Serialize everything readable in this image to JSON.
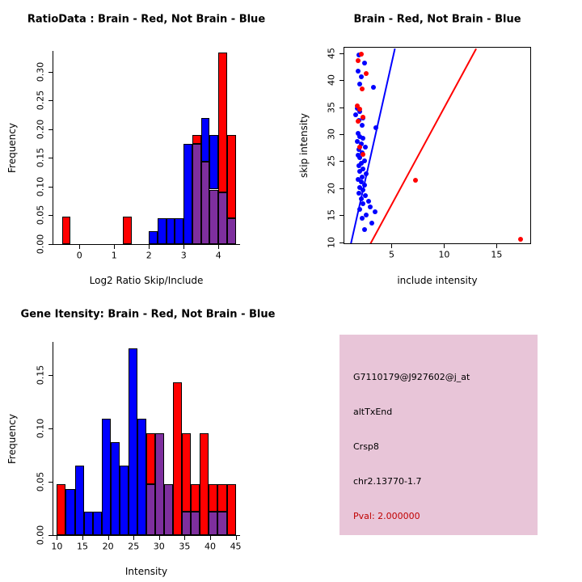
{
  "colors": {
    "red": "#FF0000",
    "blue": "#0000FF",
    "overlap": "#7E2F9E",
    "axis": "#000000"
  },
  "panels": {
    "ratio_hist": {
      "title": "RatioData : Brain - Red, Not Brain - Blue",
      "xlabel": "Log2 Ratio Skip/Include",
      "ylabel": "Frequency"
    },
    "scatter": {
      "title": "Brain - Red, Not Brain - Blue",
      "xlabel": "include intensity",
      "ylabel": "skip intensity"
    },
    "gene_hist": {
      "title": "Gene Itensity: Brain - Red, Not Brain - Blue",
      "xlabel": "Intensity",
      "ylabel": "Frequency"
    },
    "info_box": {
      "bg": "#E8C5D8",
      "lines": [
        {
          "text": "G7110179@J927602@j_at",
          "color": "#000000"
        },
        {
          "text": "altTxEnd",
          "color": "#000000"
        },
        {
          "text": "Crsp8",
          "color": "#000000"
        },
        {
          "text": "chr2.13770-1.7",
          "color": "#000000"
        },
        {
          "text": "Pval: 2.000000",
          "color": "#C00000"
        }
      ]
    }
  },
  "chart_data": [
    {
      "id": "ratio_hist",
      "type": "bar",
      "title": "RatioData : Brain - Red, Not Brain - Blue",
      "xlabel": "Log2 Ratio Skip/Include",
      "ylabel": "Frequency",
      "grid": false,
      "bin_edges": [
        -0.5,
        -0.25,
        0,
        0.25,
        0.5,
        0.75,
        1.0,
        1.25,
        1.5,
        1.75,
        2.0,
        2.25,
        2.5,
        2.75,
        3.0,
        3.25,
        3.5,
        3.75,
        4.0,
        4.25,
        4.5
      ],
      "series": [
        {
          "name": "Brain (red)",
          "color": "#FF0000",
          "values": [
            0.048,
            0,
            0,
            0,
            0,
            0,
            0,
            0.048,
            0,
            0,
            0,
            0,
            0,
            0,
            0,
            0.19,
            0.143,
            0.095,
            0.333,
            0.19
          ]
        },
        {
          "name": "Not Brain (blue)",
          "color": "#0000FF",
          "values": [
            0,
            0,
            0,
            0,
            0,
            0,
            0,
            0,
            0,
            0,
            0.022,
            0.045,
            0.045,
            0.045,
            0.175,
            0.175,
            0.22,
            0.19,
            0.09,
            0.045
          ]
        }
      ],
      "xlim": [
        -0.75,
        4.6
      ],
      "ylim": [
        0,
        0.335
      ],
      "xticks": [
        0,
        1,
        2,
        3,
        4
      ],
      "xtick_labels": [
        "0",
        "1",
        "2",
        "3",
        "4"
      ],
      "yticks": [
        0,
        0.05,
        0.1,
        0.15,
        0.2,
        0.25,
        0.3
      ],
      "ytick_labels": [
        "0.00",
        "0.05",
        "0.10",
        "0.15",
        "0.20",
        "0.25",
        "0.30"
      ]
    },
    {
      "id": "scatter",
      "type": "scatter",
      "title": "Brain - Red, Not Brain - Blue",
      "xlabel": "include intensity",
      "ylabel": "skip intensity",
      "grid": false,
      "series": [
        {
          "name": "Not Brain (blue)",
          "color": "#0000FF",
          "points": [
            [
              1.9,
              44.6
            ],
            [
              2.4,
              43.2
            ],
            [
              1.8,
              41.6
            ],
            [
              2.1,
              40.6
            ],
            [
              2.0,
              39.2
            ],
            [
              3.3,
              38.6
            ],
            [
              1.7,
              34.8
            ],
            [
              2.0,
              34.2
            ],
            [
              1.6,
              33.6
            ],
            [
              2.3,
              33.0
            ],
            [
              1.9,
              32.6
            ],
            [
              2.2,
              31.6
            ],
            [
              3.5,
              31.2
            ],
            [
              1.8,
              30.2
            ],
            [
              2.0,
              29.6
            ],
            [
              2.3,
              29.2
            ],
            [
              1.7,
              28.6
            ],
            [
              2.1,
              28.2
            ],
            [
              2.5,
              27.6
            ],
            [
              1.9,
              27.2
            ],
            [
              2.2,
              26.6
            ],
            [
              1.8,
              26.1
            ],
            [
              2.0,
              25.6
            ],
            [
              2.4,
              25.1
            ],
            [
              2.1,
              24.6
            ],
            [
              1.9,
              24.1
            ],
            [
              2.3,
              23.6
            ],
            [
              2.0,
              23.1
            ],
            [
              2.6,
              22.6
            ],
            [
              2.2,
              22.1
            ],
            [
              1.8,
              21.6
            ],
            [
              2.1,
              21.1
            ],
            [
              2.4,
              20.6
            ],
            [
              2.0,
              20.1
            ],
            [
              2.3,
              19.6
            ],
            [
              1.9,
              19.1
            ],
            [
              2.5,
              18.6
            ],
            [
              2.1,
              18.1
            ],
            [
              2.8,
              17.6
            ],
            [
              2.3,
              17.1
            ],
            [
              3.0,
              16.6
            ],
            [
              2.0,
              16.1
            ],
            [
              3.4,
              15.6
            ],
            [
              2.6,
              15.1
            ],
            [
              2.2,
              14.4
            ],
            [
              3.1,
              13.6
            ],
            [
              2.4,
              12.4
            ]
          ]
        },
        {
          "name": "Brain (red)",
          "color": "#FF0000",
          "points": [
            [
              2.1,
              44.8
            ],
            [
              1.8,
              43.6
            ],
            [
              2.6,
              41.2
            ],
            [
              2.2,
              38.4
            ],
            [
              1.7,
              35.2
            ],
            [
              2.0,
              34.6
            ],
            [
              2.3,
              33.2
            ],
            [
              1.8,
              32.4
            ],
            [
              2.0,
              27.6
            ],
            [
              2.3,
              26.2
            ],
            [
              7.3,
              21.5
            ],
            [
              17.3,
              10.5
            ]
          ]
        }
      ],
      "lines": [
        {
          "name": "blue-fit-line",
          "color": "#0000FF",
          "from": [
            1.15,
            9.8
          ],
          "to": [
            5.35,
            46
          ]
        },
        {
          "name": "red-fit-line",
          "color": "#FF0000",
          "from": [
            3.0,
            9.8
          ],
          "to": [
            13.1,
            46
          ]
        }
      ],
      "xlim": [
        0.5,
        18.2
      ],
      "ylim": [
        9.8,
        46
      ],
      "xticks": [
        5,
        10,
        15
      ],
      "xtick_labels": [
        "5",
        "10",
        "15"
      ],
      "yticks": [
        10,
        15,
        20,
        25,
        30,
        35,
        40,
        45
      ],
      "ytick_labels": [
        "10",
        "15",
        "20",
        "25",
        "30",
        "35",
        "40",
        "45"
      ]
    },
    {
      "id": "gene_hist",
      "type": "bar",
      "title": "Gene Itensity: Brain - Red, Not Brain - Blue",
      "xlabel": "Intensity",
      "ylabel": "Frequency",
      "grid": false,
      "bin_edges": [
        10,
        11.75,
        13.5,
        15.25,
        17,
        18.75,
        20.5,
        22.25,
        24,
        25.75,
        27.5,
        29.25,
        31,
        32.75,
        34.5,
        36.25,
        38,
        39.75,
        41.5,
        43.25,
        45
      ],
      "series": [
        {
          "name": "Brain (red)",
          "color": "#FF0000",
          "values": [
            0.048,
            0,
            0,
            0,
            0,
            0,
            0,
            0,
            0,
            0,
            0.095,
            0.095,
            0.048,
            0.143,
            0.095,
            0.048,
            0.095,
            0.048,
            0.048,
            0.048
          ]
        },
        {
          "name": "Not Brain (blue)",
          "color": "#0000FF",
          "values": [
            0,
            0.043,
            0.065,
            0.022,
            0.022,
            0.109,
            0.087,
            0.065,
            0.175,
            0.109,
            0.048,
            0.095,
            0.048,
            0,
            0.022,
            0.022,
            0,
            0.022,
            0.022,
            0
          ]
        }
      ],
      "xlim": [
        9.3,
        45.7
      ],
      "ylim": [
        0,
        0.18
      ],
      "xticks": [
        10,
        15,
        20,
        25,
        30,
        35,
        40,
        45
      ],
      "xtick_labels": [
        "10",
        "15",
        "20",
        "25",
        "30",
        "35",
        "40",
        "45"
      ],
      "yticks": [
        0,
        0.05,
        0.1,
        0.15
      ],
      "ytick_labels": [
        "0.00",
        "0.05",
        "0.10",
        "0.15"
      ]
    }
  ]
}
